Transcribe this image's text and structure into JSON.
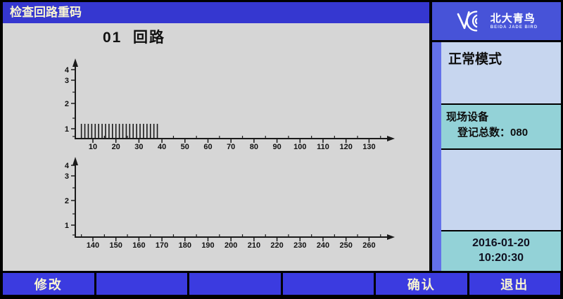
{
  "colors": {
    "titlebar_blue": "#3537d0",
    "brand_blue": "#4753d8",
    "strip_blue": "#6371ea",
    "button_blue": "#3b3be0",
    "panel_periwinkle": "#c7d6ef",
    "panel_cyan": "#93d2d7",
    "canvas_gray": "#d6d6d6",
    "cream_text": "#f8f4d2",
    "chart_ink": "#1a1a1a"
  },
  "window": {
    "title": "检查回路重码"
  },
  "brand": {
    "name_cn": "北大青鸟",
    "name_en": "BEIDA JADE BIRD"
  },
  "sidebar": {
    "mode": "正常模式",
    "device": {
      "title": "现场设备",
      "count_label": "登记总数：",
      "count_value": "080"
    },
    "datetime": {
      "date": "2016-01-20",
      "time": "10:20:30"
    }
  },
  "softkeys": [
    {
      "label": "修改"
    },
    {
      "label": ""
    },
    {
      "label": ""
    },
    {
      "label": ""
    },
    {
      "label": "确认"
    },
    {
      "label": "退出"
    }
  ],
  "chart_data": [
    {
      "type": "bar",
      "title": "01  回路",
      "loop": "01",
      "x_ticks": [
        10,
        20,
        30,
        40,
        50,
        60,
        70,
        80,
        90,
        100,
        110,
        120,
        130
      ],
      "y_ticks": [
        1,
        2,
        3,
        4
      ],
      "xlim": [
        0,
        137
      ],
      "ylim": [
        0,
        4.5
      ],
      "grid": false,
      "series": [
        {
          "name": "registered-device-marks",
          "marks_count": 23,
          "x_first": 5,
          "x_last": 38,
          "bar_height": 1.3
        }
      ]
    },
    {
      "type": "bar",
      "title": "",
      "x_ticks": [
        140,
        150,
        160,
        170,
        180,
        190,
        200,
        210,
        220,
        230,
        240,
        250,
        260
      ],
      "y_ticks": [
        1,
        2,
        3,
        4
      ],
      "xlim": [
        130,
        267
      ],
      "ylim": [
        0,
        4.5
      ],
      "grid": false,
      "series": []
    }
  ]
}
